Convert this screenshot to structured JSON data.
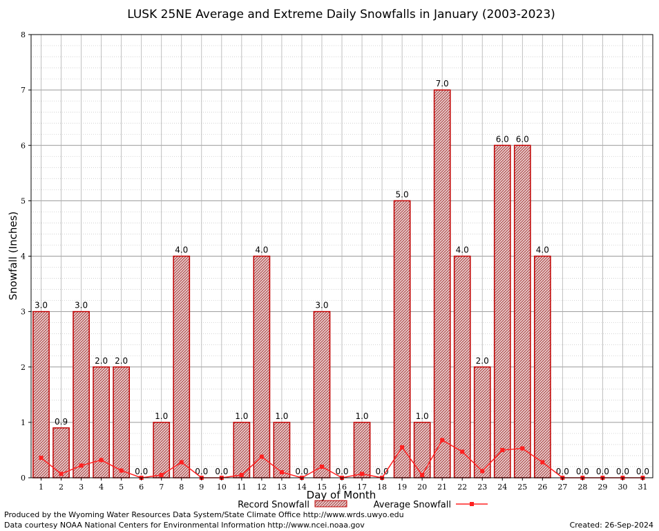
{
  "chart_data": {
    "type": "bar",
    "title": "LUSK 25NE Average and Extreme Daily Snowfalls in January (2003-2023)",
    "xlabel": "Day of Month",
    "ylabel": "Snowfall (Inches)",
    "ylim": [
      0,
      8
    ],
    "yticks": [
      "0",
      "1",
      "2",
      "3",
      "4",
      "5",
      "6",
      "7",
      "8"
    ],
    "categories": [
      "1",
      "2",
      "3",
      "4",
      "5",
      "6",
      "7",
      "8",
      "9",
      "10",
      "11",
      "12",
      "13",
      "14",
      "15",
      "16",
      "17",
      "18",
      "19",
      "20",
      "21",
      "22",
      "23",
      "24",
      "25",
      "26",
      "27",
      "28",
      "29",
      "30",
      "31"
    ],
    "series": [
      {
        "name": "Record Snowfall",
        "kind": "bar",
        "values": [
          3.0,
          0.9,
          3.0,
          2.0,
          2.0,
          0.0,
          1.0,
          4.0,
          0.0,
          0.0,
          1.0,
          4.0,
          1.0,
          0.0,
          3.0,
          0.0,
          1.0,
          0.0,
          5.0,
          1.0,
          7.0,
          4.0,
          2.0,
          6.0,
          6.0,
          4.0,
          0.0,
          0.0,
          0.0,
          0.0,
          0.0
        ],
        "labels": [
          "3.0",
          "0.9",
          "3.0",
          "2.0",
          "2.0",
          "0.0",
          "1.0",
          "4.0",
          "0.0",
          "0.0",
          "1.0",
          "4.0",
          "1.0",
          "0.0",
          "3.0",
          "0.0",
          "1.0",
          "0.0",
          "5.0",
          "1.0",
          "7.0",
          "4.0",
          "2.0",
          "6.0",
          "6.0",
          "4.0",
          "0.0",
          "0.0",
          "0.0",
          "0.0",
          "0.0"
        ]
      },
      {
        "name": "Average Snowfall",
        "kind": "line",
        "values": [
          0.36,
          0.07,
          0.22,
          0.32,
          0.13,
          0.0,
          0.05,
          0.28,
          0.0,
          0.0,
          0.05,
          0.38,
          0.1,
          0.0,
          0.2,
          0.0,
          0.07,
          0.0,
          0.55,
          0.05,
          0.68,
          0.47,
          0.12,
          0.5,
          0.53,
          0.28,
          0.0,
          0.0,
          0.0,
          0.0,
          0.0
        ]
      }
    ],
    "grid": true,
    "legend": "bottom-center",
    "colors": {
      "bar_stroke": "#c00000",
      "bar_fill": "#d9b3b3",
      "line": "#ff2020",
      "grid": "#a0a0a0"
    }
  },
  "footer": {
    "produced_by": "Produced by the Wyoming Water Resources Data System/State Climate Office http://www.wrds.uwyo.edu",
    "courtesy": "Data courtesy NOAA National Centers for Environmental Information http://www.ncei.noaa.gov",
    "created": "Created:  26-Sep-2024"
  }
}
